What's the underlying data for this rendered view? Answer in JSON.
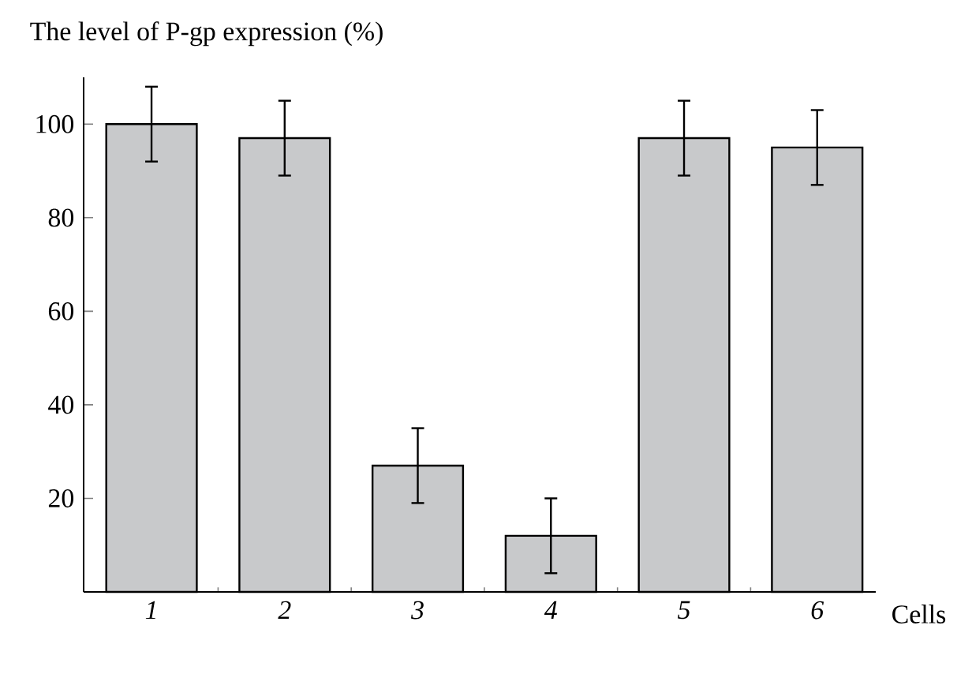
{
  "chart_data": {
    "type": "bar",
    "ylabel": "The level of P-gp expression (%)",
    "xlabel": "Cells",
    "categories": [
      "1",
      "2",
      "3",
      "4",
      "5",
      "6"
    ],
    "values": [
      100,
      97,
      27,
      12,
      97,
      95
    ],
    "errors": [
      8,
      8,
      8,
      8,
      8,
      8
    ],
    "color": "#c8c9cb",
    "ylim": [
      0,
      110
    ],
    "yticks": [
      20,
      40,
      60,
      80,
      100
    ]
  }
}
